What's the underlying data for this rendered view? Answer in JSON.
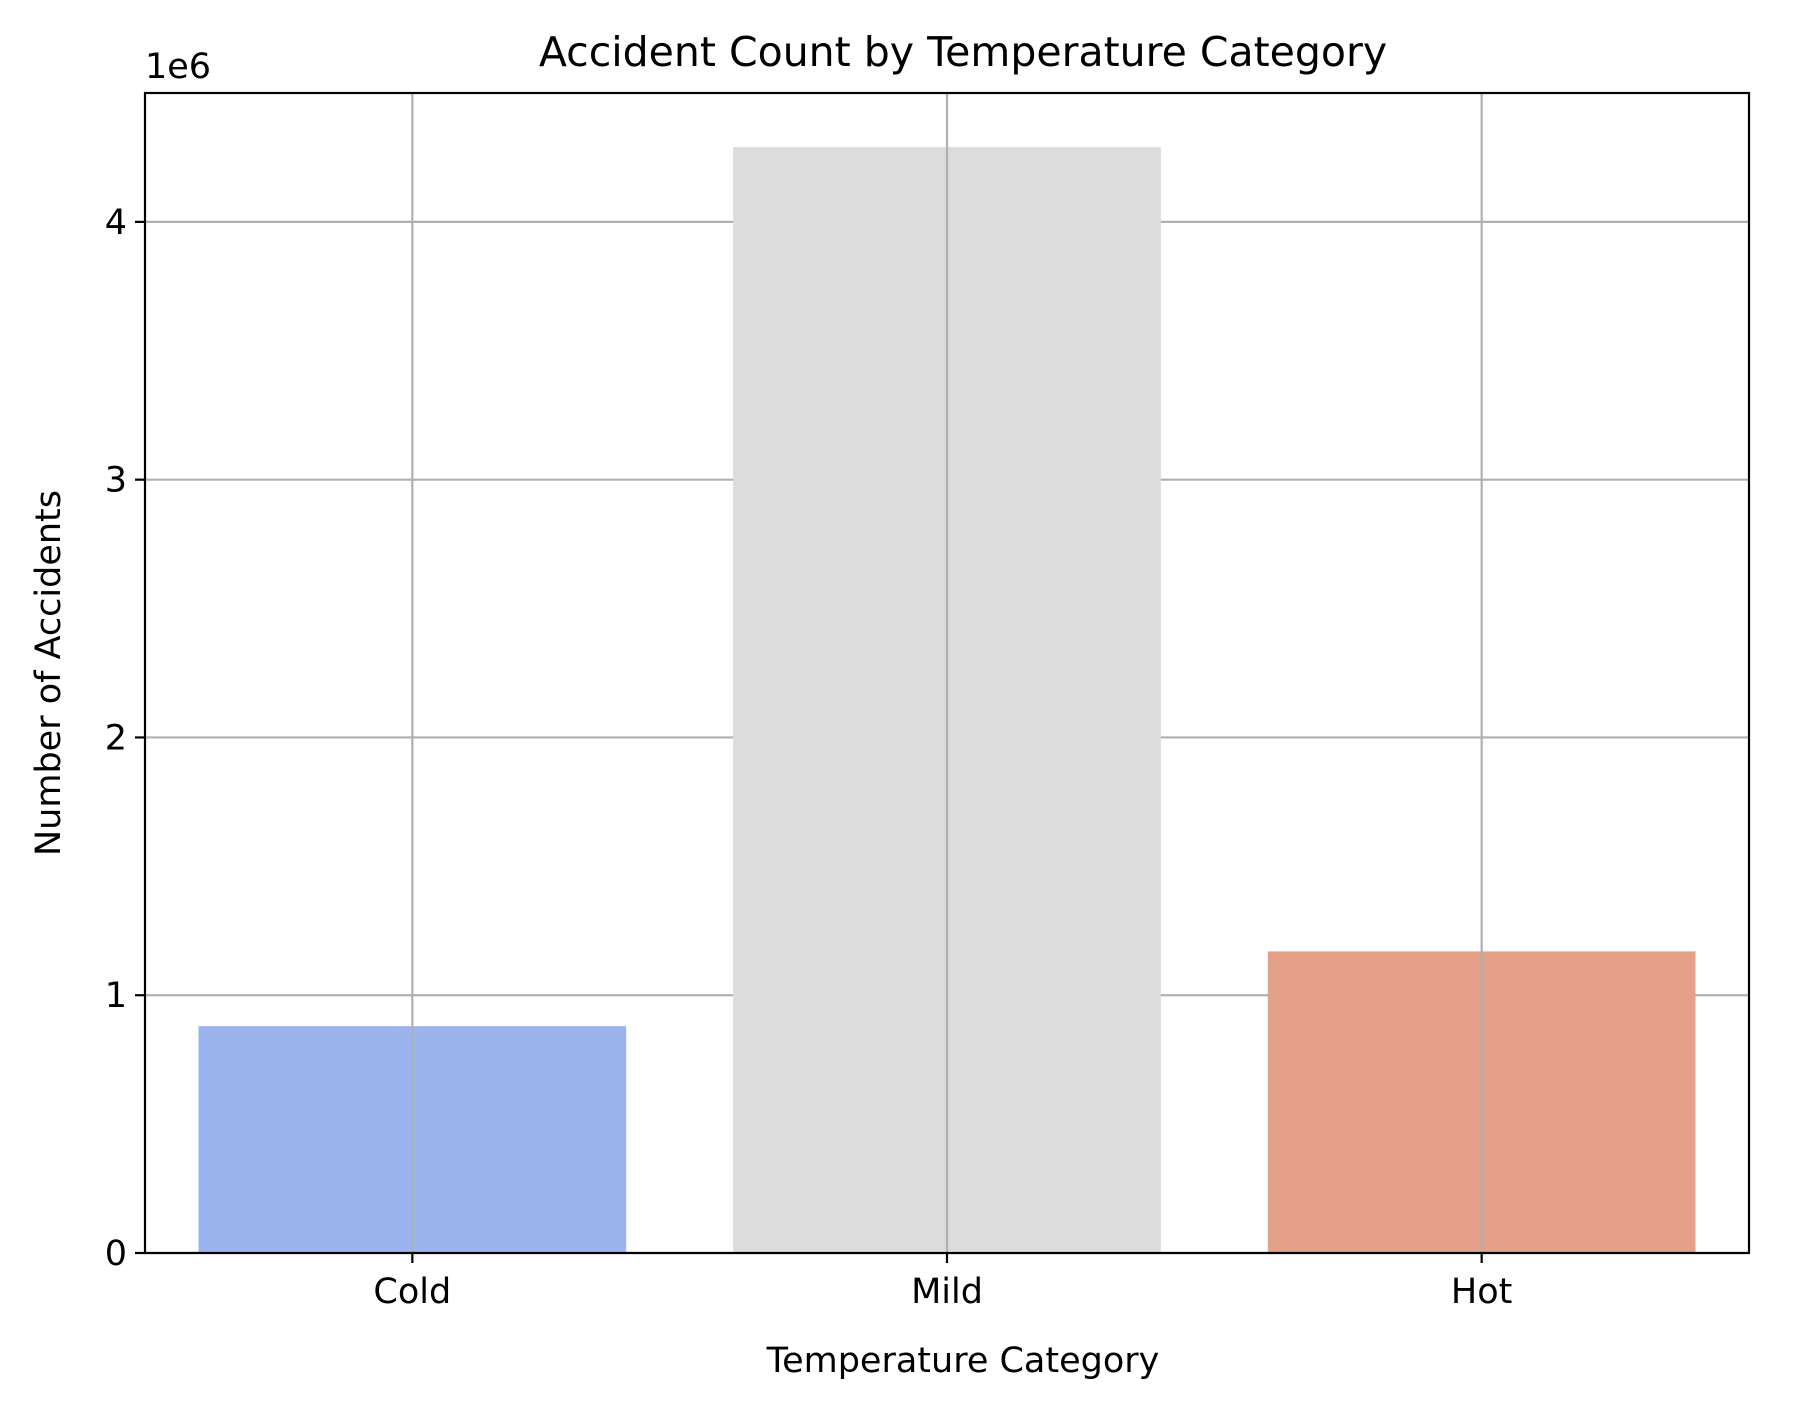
{
  "chart_data": {
    "type": "bar",
    "title": "Accident Count by Temperature Category",
    "xlabel": "Temperature Category",
    "ylabel": "Number of Accidents",
    "y_offset_label": "1e6",
    "y_scale": 1000000,
    "categories": [
      "Cold",
      "Mild",
      "Hot"
    ],
    "values": [
      880000,
      4290000,
      1170000
    ],
    "colors": [
      "#9BB4ED",
      "#DCDCDC",
      "#E5A08A"
    ],
    "ylim": [
      0,
      4500000
    ],
    "yticks": [
      0,
      1000000,
      2000000,
      3000000,
      4000000
    ],
    "ytick_labels": [
      "0",
      "1",
      "2",
      "3",
      "4"
    ],
    "grid": true,
    "legend": "none"
  }
}
